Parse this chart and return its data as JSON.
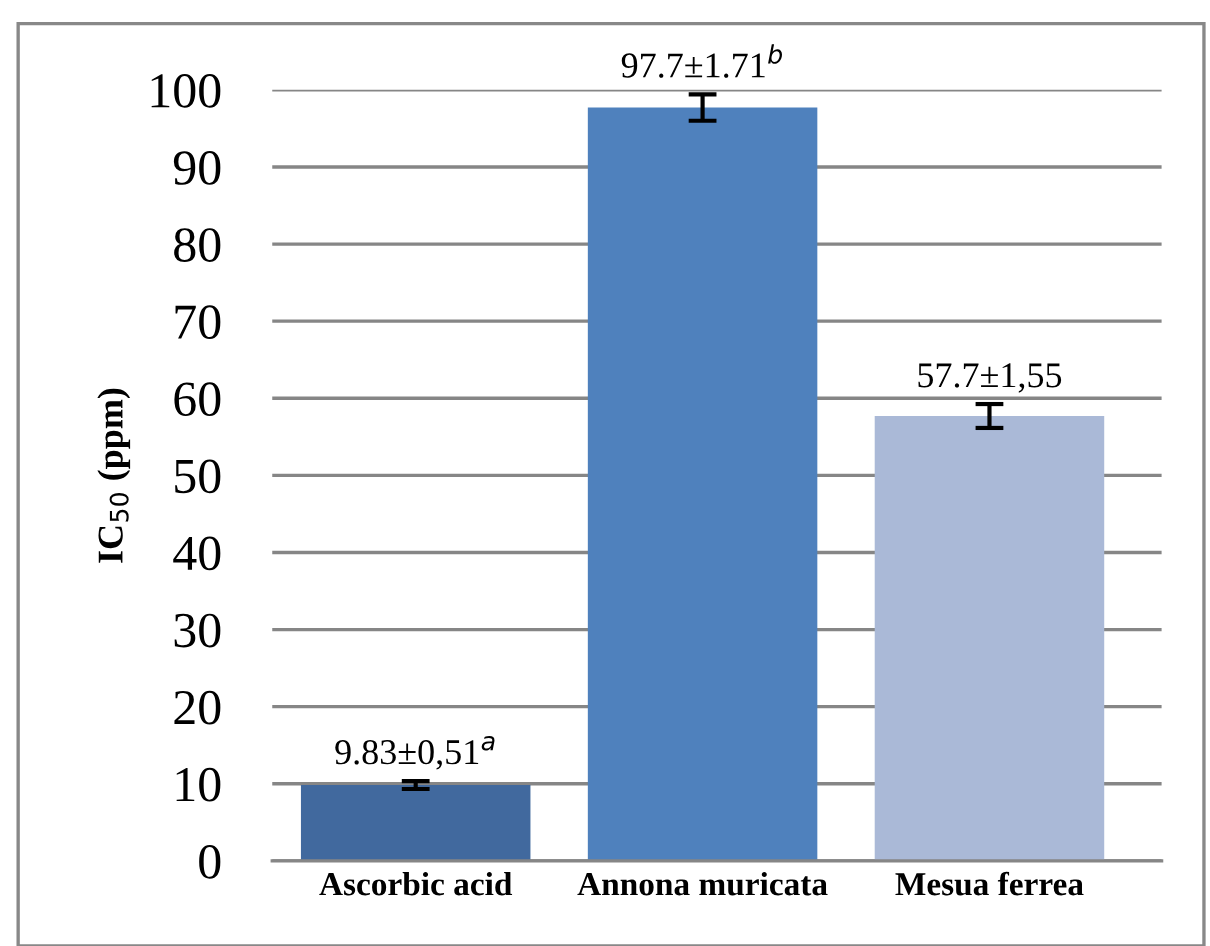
{
  "chart_data": {
    "type": "bar",
    "ylabel": "IC$_{50}$ (ppm)",
    "categories": [
      "Ascorbic acid",
      "Annona muricata",
      "Mesua ferrea"
    ],
    "values": [
      9.83,
      97.7,
      57.7
    ],
    "errors": [
      0.51,
      1.71,
      1.55
    ],
    "value_labels": [
      "9.83±0,51$^{a}$",
      "97.7±1.71$^{b}$",
      "57.7±1,55"
    ],
    "colors": [
      "#41699e",
      "#4f81bd",
      "#aab9d7"
    ],
    "ylim": [
      0,
      100
    ],
    "yticks": [
      0,
      10,
      20,
      30,
      40,
      50,
      60,
      70,
      80,
      90,
      100
    ],
    "grid": "y"
  }
}
